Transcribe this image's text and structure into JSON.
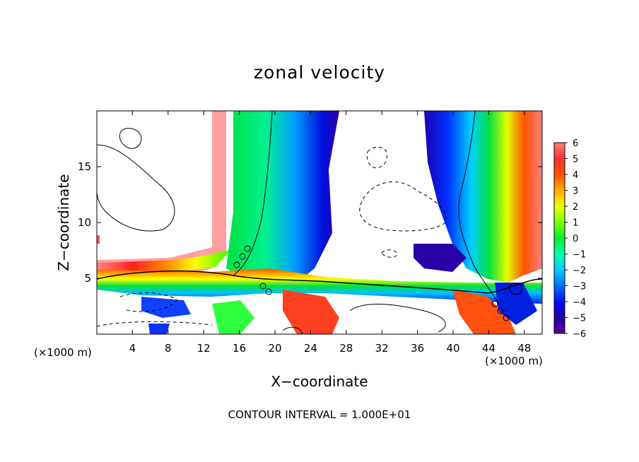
{
  "chart_data": {
    "type": "heatmap",
    "title": "zonal velocity",
    "xlabel": "X−coordinate",
    "ylabel": "Z−coordinate",
    "x_unit_note": "(×1000 m)",
    "xlim": [
      0,
      50
    ],
    "ylim": [
      0,
      20
    ],
    "x_ticks": [
      4,
      8,
      12,
      16,
      20,
      24,
      28,
      32,
      36,
      40,
      44,
      48
    ],
    "y_ticks": [
      5,
      10,
      15
    ],
    "colorbar": {
      "range": [
        -6,
        6
      ],
      "ticks": [
        6,
        5,
        4,
        3,
        2,
        1,
        0,
        -1,
        -2,
        -3,
        -4,
        -5,
        -6
      ],
      "tick_labels": [
        "6",
        "5",
        "4",
        "3",
        "2",
        "1",
        "0",
        "−1",
        "−2",
        "−3",
        "−4",
        "−5",
        "−6"
      ]
    },
    "contour_note": "CONTOUR INTERVAL = 1.000E+01",
    "grid": false
  },
  "colors": {
    "plot_background": "#ffffff",
    "contour_line": "#000000"
  }
}
